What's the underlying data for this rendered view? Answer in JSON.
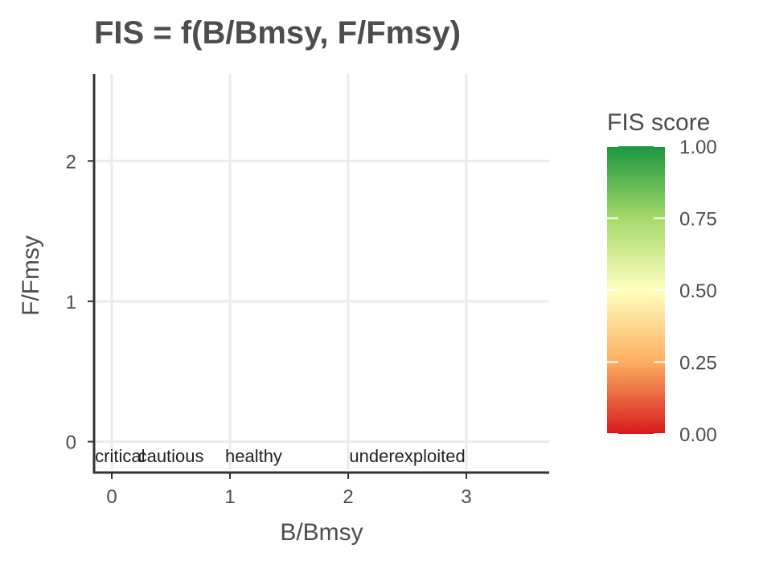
{
  "chart_data": {
    "type": "heatmap",
    "title": "FIS = f(B/Bmsy, F/Fmsy)",
    "xlabel": "B/Bmsy",
    "ylabel": "F/Fmsy",
    "xlim": [
      -0.15,
      3.7
    ],
    "ylim": [
      -0.22,
      2.62
    ],
    "data_extent": {
      "x": [
        0,
        3.5
      ],
      "y": [
        0,
        2.5
      ]
    },
    "x_ticks": [
      {
        "value": 0,
        "label": "0"
      },
      {
        "value": 1,
        "label": "1"
      },
      {
        "value": 2,
        "label": "2"
      },
      {
        "value": 3,
        "label": "3"
      }
    ],
    "y_ticks": [
      {
        "value": 0,
        "label": "0"
      },
      {
        "value": 1,
        "label": "1"
      },
      {
        "value": 2,
        "label": "2"
      }
    ],
    "legend": {
      "title": "FIS score",
      "position": "right",
      "range": [
        0,
        1
      ],
      "ticks": [
        {
          "value": 1.0,
          "label": "1.00"
        },
        {
          "value": 0.75,
          "label": "0.75"
        },
        {
          "value": 0.5,
          "label": "0.50"
        },
        {
          "value": 0.25,
          "label": "0.25"
        },
        {
          "value": 0.0,
          "label": "0.00"
        }
      ],
      "palette": [
        "#d7191c",
        "#fdae61",
        "#ffffbf",
        "#a6d96a",
        "#1a9641"
      ]
    },
    "annotations": [
      {
        "x": 0.07,
        "y": -0.1,
        "text": "critical"
      },
      {
        "x": 0.5,
        "y": -0.1,
        "text": "cautious"
      },
      {
        "x": 1.2,
        "y": -0.1,
        "text": "healthy"
      },
      {
        "x": 2.5,
        "y": -0.1,
        "text": "underexploited"
      }
    ],
    "grid": true
  }
}
